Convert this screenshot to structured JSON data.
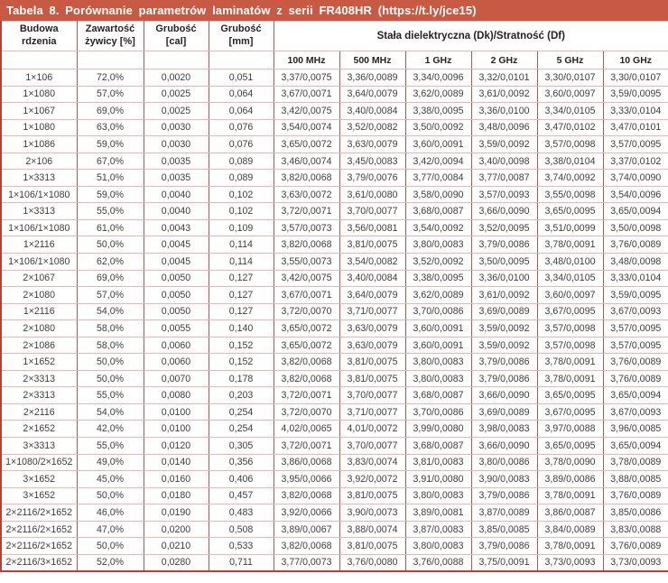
{
  "title": "Tabela 8. Porównanie parametrów laminatów z serii FR408HR (https://t.ly/jce15)",
  "colors": {
    "title_bar_bg": "#c85a44",
    "title_text": "#ffffff",
    "border_outer": "#b54136",
    "border_vertical": "#c3514a",
    "border_horizontal": "#eeb4ae",
    "header_text": "#272122",
    "cell_text": "#3c3c3c"
  },
  "table": {
    "column_headers": [
      "Budowa rdzenia",
      "Zawartość żywicy [%]",
      "Grubość [cal]",
      "Grubość [mm]"
    ],
    "group_header": "Stała dielektryczna (Dk)/Stratność (Df)",
    "freq_headers": [
      "100 MHz",
      "500 MHz",
      "1 GHz",
      "2 GHz",
      "5 GHz",
      "10 GHz"
    ],
    "rows": [
      [
        "1×106",
        "72,0%",
        "0,0020",
        "0,051",
        "3,37/0,0075",
        "3,36/0,0089",
        "3,34/0,0096",
        "3,32/0,0101",
        "3,30/0,0107",
        "3,30/0,0107"
      ],
      [
        "1×1080",
        "57,0%",
        "0,0025",
        "0,064",
        "3,67/0,0071",
        "3,64/0,0079",
        "3,62/0,0089",
        "3,61/0,0092",
        "3,60/0,0097",
        "3,59/0,0095"
      ],
      [
        "1×1067",
        "69,0%",
        "0,0025",
        "0,064",
        "3,42/0,0075",
        "3,40/0,0084",
        "3,38/0,0095",
        "3,36/0,0100",
        "3,34/0,0105",
        "3,33/0,0104"
      ],
      [
        "1×1080",
        "63,0%",
        "0,0030",
        "0,076",
        "3,54/0,0074",
        "3,52/0,0082",
        "3,50/0,0092",
        "3,48/0,0096",
        "3,47/0,0102",
        "3,47/0,0101"
      ],
      [
        "1×1086",
        "59,0%",
        "0,0030",
        "0,076",
        "3,65/0,0072",
        "3,63/0,0079",
        "3,60/0,0091",
        "3,59/0,0092",
        "3,57/0,0098",
        "3,57/0,0095"
      ],
      [
        "2×106",
        "67,0%",
        "0,0035",
        "0,089",
        "3,46/0,0074",
        "3,45/0,0083",
        "3,42/0,0094",
        "3,40/0,0098",
        "3,38/0,0104",
        "3,37/0,0102"
      ],
      [
        "1×3313",
        "51,0%",
        "0,0035",
        "0,089",
        "3,82/0,0068",
        "3,79/0,0076",
        "3,77/0,0084",
        "3,77/0,0087",
        "3,74/0,0092",
        "3,74/0,0090"
      ],
      [
        "1×106/1×1080",
        "59,0%",
        "0,0040",
        "0,102",
        "3,63/0,0072",
        "3,61/0,0080",
        "3,58/0,0090",
        "3,57/0,0093",
        "3,55/0,0098",
        "3,54/0,0096"
      ],
      [
        "1×3313",
        "55,0%",
        "0,0040",
        "0,102",
        "3,72/0,0071",
        "3,70/0,0077",
        "3,68/0,0087",
        "3,66/0,0090",
        "3,65/0,0095",
        "3,65/0,0094"
      ],
      [
        "1×106/1×1080",
        "61,0%",
        "0,0043",
        "0,109",
        "3,57/0,0073",
        "3,56/0,0081",
        "3,54/0,0092",
        "3,52/0,0095",
        "3,51/0,0099",
        "3,50/0,0098"
      ],
      [
        "1×2116",
        "50,0%",
        "0,0045",
        "0,114",
        "3,82/0,0068",
        "3,81/0,0075",
        "3,80/0,0083",
        "3,79/0,0086",
        "3,78/0,0091",
        "3,76/0,0089"
      ],
      [
        "1×106/1×1080",
        "62,0%",
        "0,0045",
        "0,114",
        "3,55/0,0073",
        "3,54/0,0082",
        "3,52/0,0092",
        "3,50/0,0095",
        "3,48/0,0100",
        "3,48/0,0098"
      ],
      [
        "2×1067",
        "69,0%",
        "0,0050",
        "0,127",
        "3,42/0,0075",
        "3,40/0,0084",
        "3,38/0,0095",
        "3,36/0,0100",
        "3,34/0,0105",
        "3,33/0,0104"
      ],
      [
        "2×1080",
        "57,0%",
        "0,0050",
        "0,127",
        "3,67/0,0071",
        "3,64/0,0079",
        "3,62/0,0089",
        "3,61/0,0092",
        "3,60/0,0097",
        "3,59/0,0095"
      ],
      [
        "1×2116",
        "54,0%",
        "0,0050",
        "0,127",
        "3,72/0,0070",
        "3,71/0,0077",
        "3,70/0,0086",
        "3,69/0,0089",
        "3,67/0,0095",
        "3,67/0,0093"
      ],
      [
        "2×1080",
        "58,0%",
        "0,0055",
        "0,140",
        "3,65/0,0072",
        "3,63/0,0079",
        "3,60/0,0091",
        "3,59/0,0092",
        "3,57/0,0098",
        "3,57/0,0095"
      ],
      [
        "2×1086",
        "58,0%",
        "0,0060",
        "0,152",
        "3,65/0,0072",
        "3,63/0,0079",
        "3,60/0,0091",
        "3,59/0,0092",
        "3,57/0,0098",
        "3,57/0,0095"
      ],
      [
        "1×1652",
        "50,0%",
        "0,0060",
        "0,152",
        "3,82/0,0068",
        "3,81/0,0075",
        "3,80/0,0083",
        "3,79/0,0086",
        "3,78/0,0091",
        "3,76/0,0089"
      ],
      [
        "2×3313",
        "50,0%",
        "0,0070",
        "0,178",
        "3,82/0,0068",
        "3,81/0,0075",
        "3,80/0,0083",
        "3,79/0,0086",
        "3,78/0,0091",
        "3,76/0,0089"
      ],
      [
        "2×3313",
        "55,0%",
        "0,0080",
        "0,203",
        "3,72/0,0071",
        "3,70/0,0077",
        "3,68/0,0087",
        "3,66/0,0090",
        "3,65/0,0095",
        "3,65/0,0094"
      ],
      [
        "2×2116",
        "54,0%",
        "0,0100",
        "0,254",
        "3,72/0,0070",
        "3,71/0,0077",
        "3,70/0,0086",
        "3,69/0,0089",
        "3,67/0,0095",
        "3,67/0,0093"
      ],
      [
        "2×1652",
        "42,0%",
        "0,0100",
        "0,254",
        "4,02/0,0065",
        "4,01/0,0072",
        "3,99/0,0080",
        "3,98/0,0083",
        "3,97/0,0088",
        "3,96/0,0085"
      ],
      [
        "3×3313",
        "55,0%",
        "0,0120",
        "0,305",
        "3,72/0,0071",
        "3,70/0,0077",
        "3,68/0,0087",
        "3,66/0,0090",
        "3,65/0,0095",
        "3,65/0,0094"
      ],
      [
        "1×1080/2×1652",
        "49,0%",
        "0,0140",
        "0,356",
        "3,86/0,0068",
        "3,83/0,0074",
        "3,81/0,0083",
        "3,80/0,0086",
        "3,78/0,0090",
        "3,78/0,0089"
      ],
      [
        "3×1652",
        "45,0%",
        "0,0160",
        "0,406",
        "3,95/0,0066",
        "3,92/0,0072",
        "3,91/0,0080",
        "3,90/0,0083",
        "3,89/0,0086",
        "3,88/0,0085"
      ],
      [
        "3×1652",
        "50,0%",
        "0,0180",
        "0,457",
        "3,82/0,0068",
        "3,81/0,0075",
        "3,80/0,0083",
        "3,79/0,0086",
        "3,78/0,0091",
        "3,76/0,0089"
      ],
      [
        "2×2116/2×1652",
        "46,0%",
        "0,0190",
        "0,483",
        "3,92/0,0066",
        "3,90/0,0073",
        "3,89/0,0081",
        "3,87/0,0089",
        "3,86/0,0087",
        "3,85/0,0086"
      ],
      [
        "2×2116/2×1652",
        "47,0%",
        "0,0200",
        "0,508",
        "3,89/0,0067",
        "3,88/0,0074",
        "3,87/0,0083",
        "3,85/0,0085",
        "3,84/0,0089",
        "3,83/0,0088"
      ],
      [
        "2×2116/2×1652",
        "50,0%",
        "0,0210",
        "0,533",
        "3,82/0,0068",
        "3,81/0,0075",
        "3,80/0,0083",
        "3,79/0,0086",
        "3,78/0,0091",
        "3,76/0,0089"
      ],
      [
        "2×2116/3×1652",
        "52,0%",
        "0,0280",
        "0,711",
        "3,77/0,0073",
        "3,76/0,0080",
        "3,76/0,0088",
        "3,75/0,0091",
        "3,73/0,0093",
        "3,73/0,0093"
      ]
    ]
  }
}
